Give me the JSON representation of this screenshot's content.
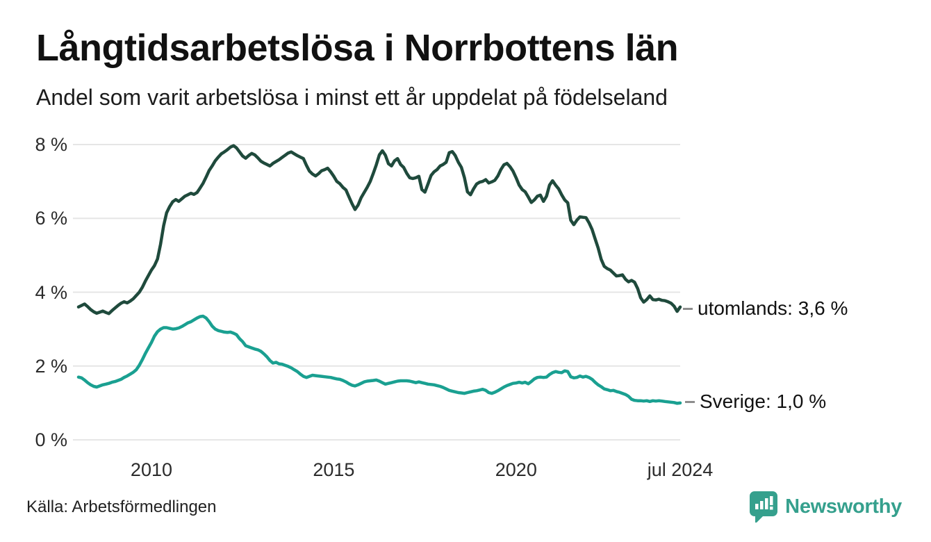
{
  "chart_data": {
    "type": "line",
    "title": "Långtidsarbetslösa i Norrbottens län",
    "subtitle": "Andel som varit arbetslösa i minst ett år uppdelat på födelseland",
    "x_frequency": "monthly",
    "x_start": "2008-01",
    "x_end": "2024-07",
    "x_range_numeric": [
      2008.0,
      2024.5
    ],
    "ylim": [
      0,
      8
    ],
    "grid": "horizontal",
    "grid_color": "#e6e6e6",
    "background_color": "#ffffff",
    "legend_position": "end-of-line labels, right side",
    "y_ticks": [
      {
        "value": 8,
        "label": "8 %"
      },
      {
        "value": 6,
        "label": "6 %"
      },
      {
        "value": 4,
        "label": "4 %"
      },
      {
        "value": 2,
        "label": "2 %"
      },
      {
        "value": 0,
        "label": "0 %"
      }
    ],
    "x_ticks": [
      {
        "value": 2010,
        "label": "2010"
      },
      {
        "value": 2015,
        "label": "2015"
      },
      {
        "value": 2020,
        "label": "2020"
      },
      {
        "value": 2024.5,
        "label": "jul 2024"
      }
    ],
    "series": [
      {
        "name": "utomlands",
        "color": "#1f4a3c",
        "end_label": "utomlands: 3,6 %",
        "last_value_text": "3,6 %",
        "values": [
          3.6,
          3.64,
          3.68,
          3.61,
          3.53,
          3.47,
          3.43,
          3.46,
          3.49,
          3.45,
          3.42,
          3.5,
          3.57,
          3.64,
          3.7,
          3.74,
          3.71,
          3.76,
          3.82,
          3.91,
          4.0,
          4.13,
          4.3,
          4.45,
          4.6,
          4.72,
          4.9,
          5.3,
          5.8,
          6.15,
          6.32,
          6.45,
          6.51,
          6.46,
          6.53,
          6.6,
          6.64,
          6.68,
          6.65,
          6.7,
          6.82,
          6.95,
          7.12,
          7.3,
          7.42,
          7.56,
          7.66,
          7.75,
          7.8,
          7.86,
          7.93,
          7.97,
          7.91,
          7.8,
          7.69,
          7.63,
          7.7,
          7.76,
          7.72,
          7.64,
          7.55,
          7.5,
          7.46,
          7.42,
          7.49,
          7.54,
          7.59,
          7.65,
          7.71,
          7.77,
          7.8,
          7.75,
          7.7,
          7.66,
          7.62,
          7.44,
          7.28,
          7.2,
          7.15,
          7.21,
          7.29,
          7.32,
          7.36,
          7.26,
          7.14,
          7.0,
          6.94,
          6.84,
          6.77,
          6.58,
          6.4,
          6.24,
          6.36,
          6.56,
          6.7,
          6.84,
          7.0,
          7.22,
          7.45,
          7.72,
          7.83,
          7.71,
          7.48,
          7.42,
          7.56,
          7.62,
          7.46,
          7.38,
          7.22,
          7.1,
          7.08,
          7.1,
          7.14,
          6.78,
          6.71,
          6.93,
          7.16,
          7.26,
          7.32,
          7.42,
          7.46,
          7.52,
          7.78,
          7.81,
          7.7,
          7.52,
          7.38,
          7.1,
          6.72,
          6.64,
          6.8,
          6.93,
          6.98,
          7.0,
          7.05,
          6.96,
          6.99,
          7.03,
          7.15,
          7.32,
          7.45,
          7.49,
          7.4,
          7.28,
          7.1,
          6.9,
          6.78,
          6.72,
          6.58,
          6.43,
          6.5,
          6.6,
          6.63,
          6.46,
          6.6,
          6.9,
          7.02,
          6.9,
          6.8,
          6.64,
          6.5,
          6.42,
          5.95,
          5.83,
          5.95,
          6.04,
          6.03,
          6.02,
          5.88,
          5.7,
          5.45,
          5.2,
          4.89,
          4.7,
          4.64,
          4.6,
          4.52,
          4.44,
          4.45,
          4.47,
          4.35,
          4.28,
          4.32,
          4.27,
          4.1,
          3.85,
          3.73,
          3.8,
          3.9,
          3.8,
          3.79,
          3.81,
          3.78,
          3.77,
          3.74,
          3.7,
          3.62,
          3.48,
          3.6
        ]
      },
      {
        "name": "Sverige",
        "color": "#1aa091",
        "end_label": "Sverige: 1,0 %",
        "last_value_text": "1,0 %",
        "values": [
          1.7,
          1.68,
          1.62,
          1.55,
          1.49,
          1.45,
          1.43,
          1.46,
          1.49,
          1.51,
          1.53,
          1.56,
          1.58,
          1.61,
          1.64,
          1.69,
          1.73,
          1.78,
          1.83,
          1.9,
          2.02,
          2.17,
          2.34,
          2.49,
          2.64,
          2.81,
          2.93,
          3.0,
          3.04,
          3.04,
          3.02,
          3.0,
          3.01,
          3.03,
          3.07,
          3.12,
          3.17,
          3.2,
          3.25,
          3.3,
          3.34,
          3.35,
          3.3,
          3.2,
          3.08,
          3.0,
          2.96,
          2.94,
          2.92,
          2.91,
          2.92,
          2.89,
          2.85,
          2.74,
          2.66,
          2.55,
          2.52,
          2.49,
          2.46,
          2.44,
          2.4,
          2.33,
          2.25,
          2.15,
          2.08,
          2.1,
          2.06,
          2.05,
          2.02,
          1.99,
          1.95,
          1.9,
          1.85,
          1.78,
          1.72,
          1.69,
          1.72,
          1.75,
          1.74,
          1.73,
          1.72,
          1.71,
          1.7,
          1.69,
          1.67,
          1.65,
          1.64,
          1.61,
          1.57,
          1.52,
          1.48,
          1.46,
          1.49,
          1.53,
          1.57,
          1.59,
          1.6,
          1.61,
          1.62,
          1.59,
          1.55,
          1.51,
          1.53,
          1.55,
          1.57,
          1.59,
          1.6,
          1.6,
          1.6,
          1.59,
          1.57,
          1.55,
          1.57,
          1.55,
          1.53,
          1.51,
          1.5,
          1.49,
          1.47,
          1.45,
          1.42,
          1.38,
          1.34,
          1.32,
          1.3,
          1.28,
          1.27,
          1.26,
          1.28,
          1.3,
          1.32,
          1.33,
          1.35,
          1.37,
          1.34,
          1.28,
          1.26,
          1.29,
          1.33,
          1.38,
          1.43,
          1.47,
          1.5,
          1.53,
          1.54,
          1.56,
          1.54,
          1.56,
          1.52,
          1.58,
          1.65,
          1.69,
          1.7,
          1.69,
          1.7,
          1.77,
          1.82,
          1.85,
          1.83,
          1.82,
          1.87,
          1.85,
          1.71,
          1.68,
          1.69,
          1.73,
          1.7,
          1.72,
          1.69,
          1.64,
          1.56,
          1.49,
          1.44,
          1.38,
          1.36,
          1.33,
          1.34,
          1.31,
          1.29,
          1.26,
          1.23,
          1.18,
          1.1,
          1.07,
          1.06,
          1.06,
          1.05,
          1.06,
          1.04,
          1.06,
          1.05,
          1.06,
          1.05,
          1.04,
          1.03,
          1.02,
          1.01,
          0.99,
          1.0
        ]
      }
    ]
  },
  "footer": {
    "source": "Källa: Arbetsförmedlingen",
    "logo_text": "Newsworthy",
    "logo_color": "#35a08d"
  }
}
